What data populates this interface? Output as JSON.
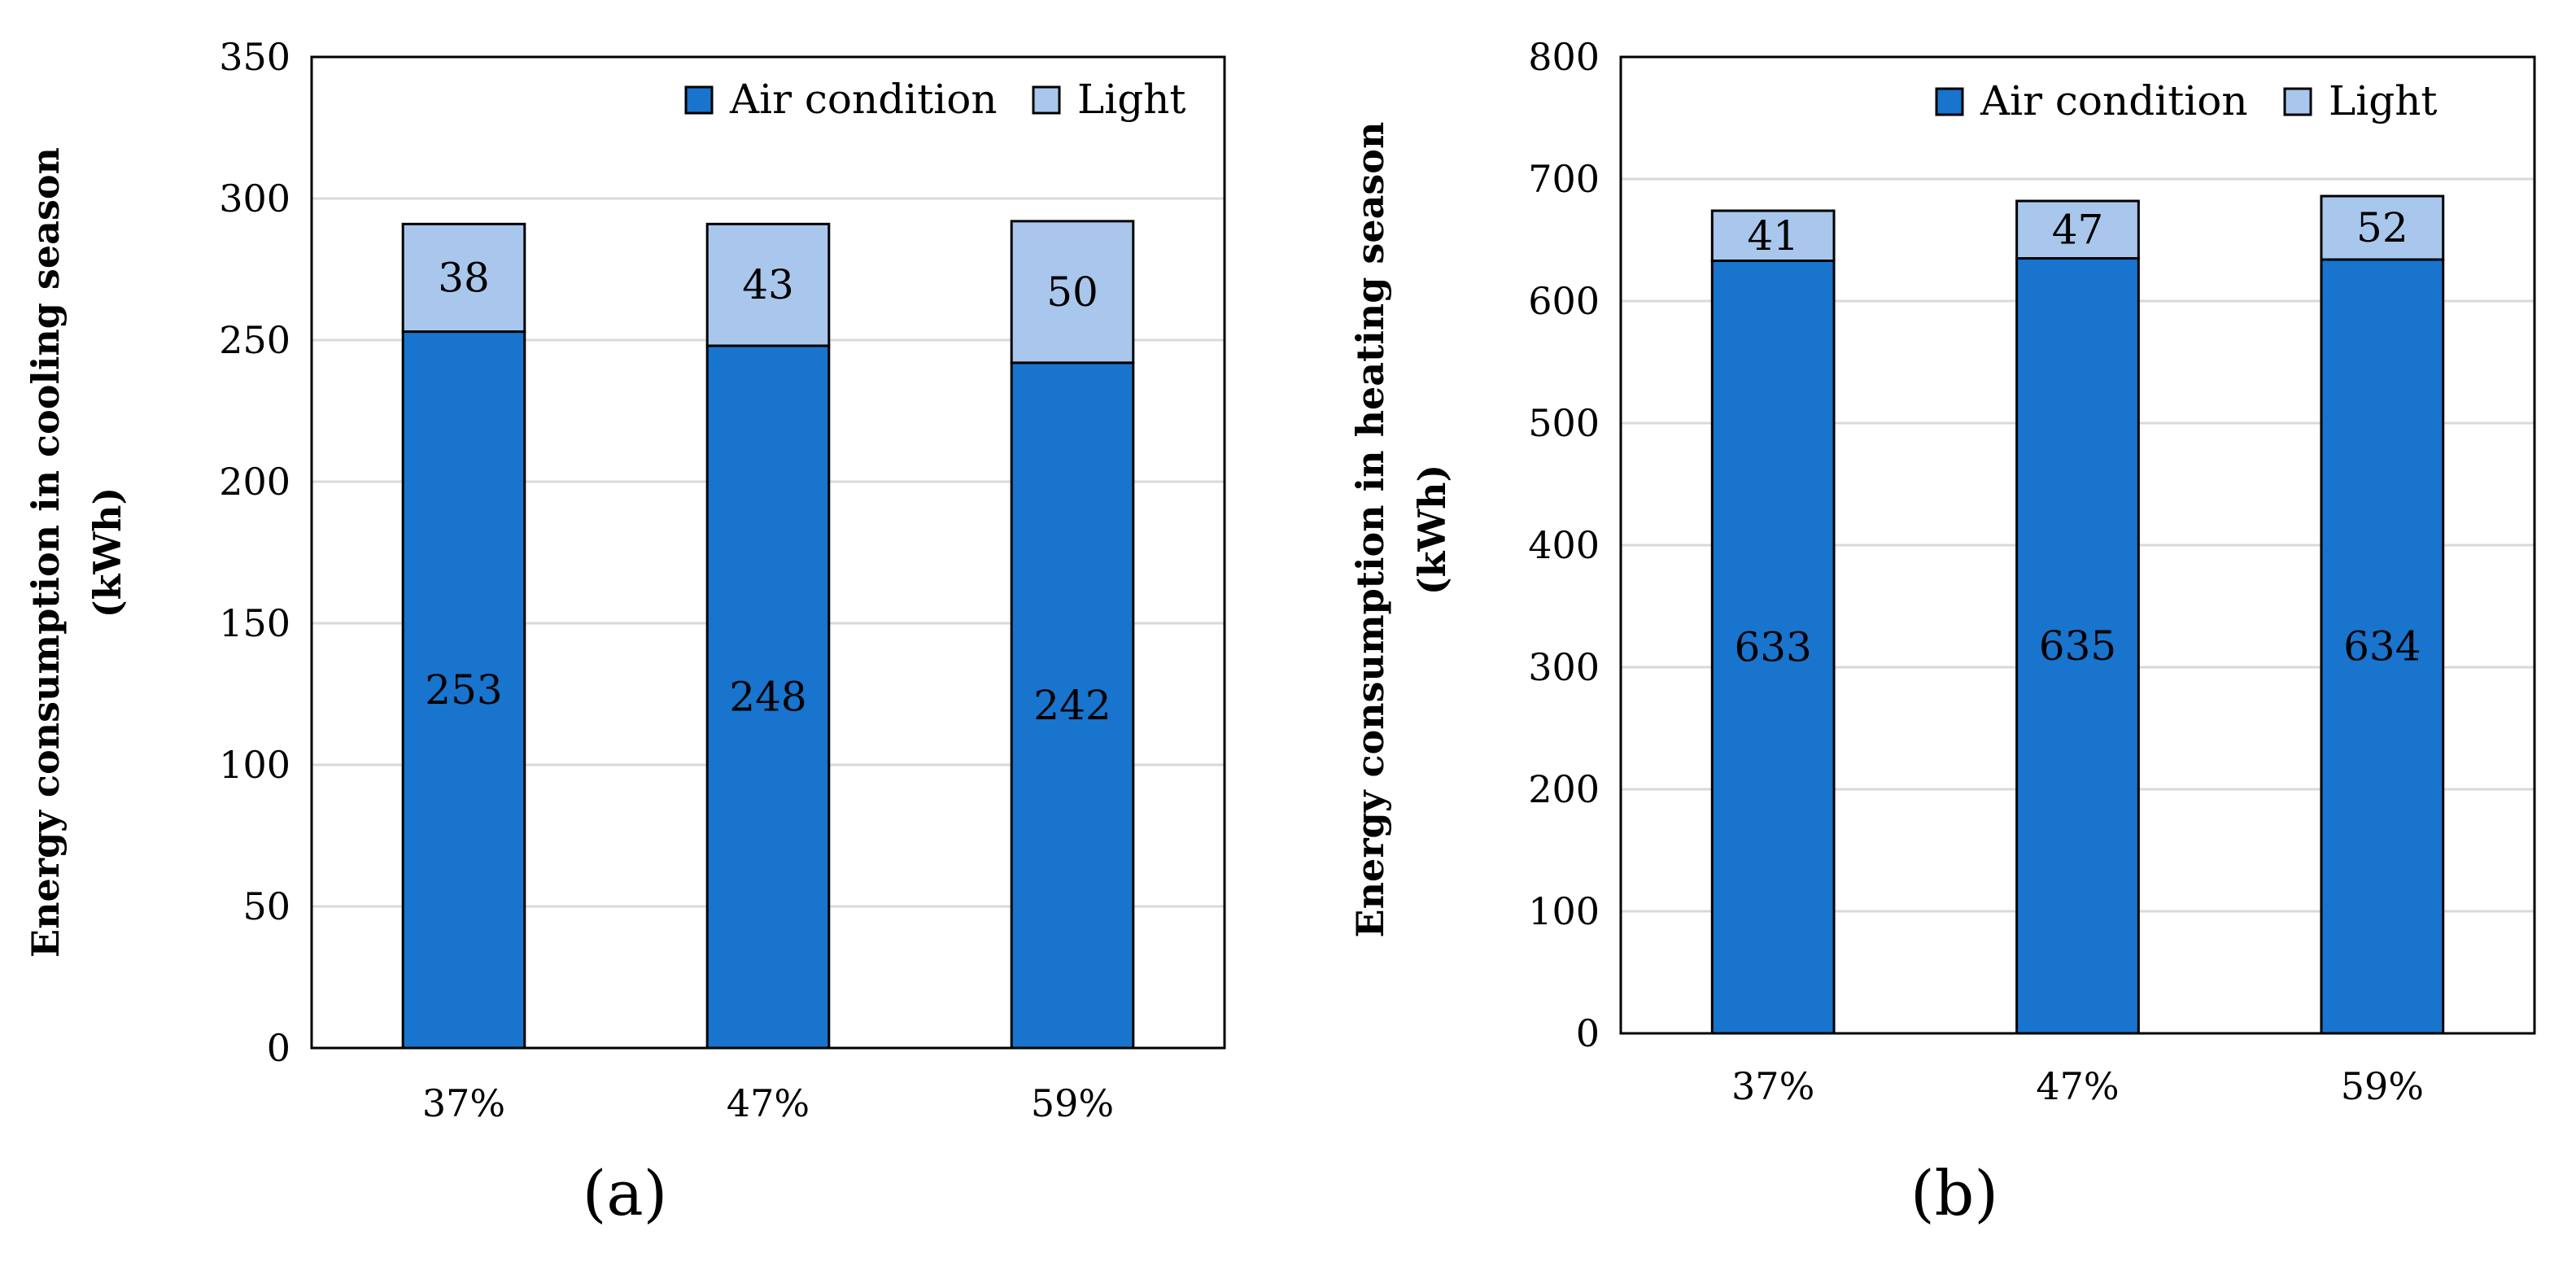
{
  "colors": {
    "air_condition": "#1874CD",
    "light": "#A9C7EC",
    "gridline": "#D9D9D9",
    "axis": "#000000"
  },
  "chart_data": [
    {
      "type": "bar",
      "stacked": true,
      "panel_label": "(a)",
      "categories": [
        "37%",
        "47%",
        "59%"
      ],
      "series": [
        {
          "name": "Air condition",
          "values": [
            253,
            248,
            242
          ],
          "labels": [
            "253",
            "248",
            "242"
          ]
        },
        {
          "name": "Light",
          "values": [
            38,
            43,
            50
          ],
          "labels": [
            "38",
            "43",
            "50"
          ]
        }
      ],
      "ylabel_line1": "Energy consumption in cooling season",
      "ylabel_line2": "(kWh)",
      "ylim": [
        0,
        350
      ],
      "yticks": [
        0,
        50,
        100,
        150,
        200,
        250,
        300,
        350
      ],
      "ytick_labels": [
        "0",
        "50",
        "100",
        "150",
        "200",
        "250",
        "300",
        "350"
      ],
      "grid": true,
      "legend_position": "top-right"
    },
    {
      "type": "bar",
      "stacked": true,
      "panel_label": "(b)",
      "categories": [
        "37%",
        "47%",
        "59%"
      ],
      "series": [
        {
          "name": "Air condition",
          "values": [
            633,
            635,
            634
          ],
          "labels": [
            "633",
            "635",
            "634"
          ]
        },
        {
          "name": "Light",
          "values": [
            41,
            47,
            52
          ],
          "labels": [
            "41",
            "47",
            "52"
          ]
        }
      ],
      "ylabel_line1": "Energy consumption in heating season",
      "ylabel_line2": "(kWh)",
      "ylim": [
        0,
        800
      ],
      "yticks": [
        0,
        100,
        200,
        300,
        400,
        500,
        600,
        700,
        800
      ],
      "ytick_labels": [
        "0",
        "100",
        "200",
        "300",
        "400",
        "500",
        "600",
        "700",
        "800"
      ],
      "grid": true,
      "legend_position": "top-right"
    }
  ]
}
